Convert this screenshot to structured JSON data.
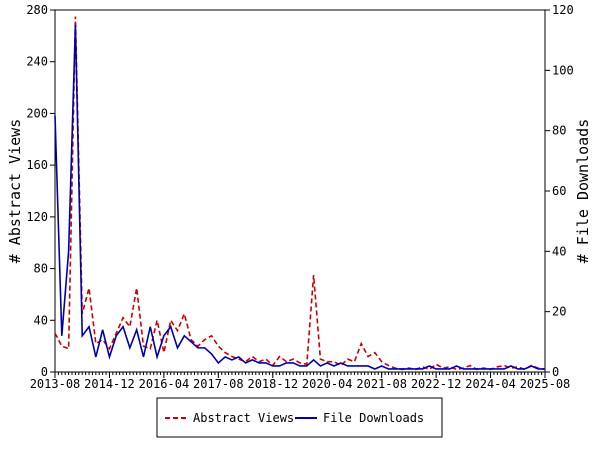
{
  "chart_data": {
    "type": "line",
    "ylabel": "# Abstract Views",
    "y2label": "# File Downloads",
    "x": [
      "2013-08",
      "2013-10",
      "2013-12",
      "2014-02",
      "2014-04",
      "2014-06",
      "2014-08",
      "2014-10",
      "2014-12",
      "2015-02",
      "2015-04",
      "2015-06",
      "2015-08",
      "2015-10",
      "2015-12",
      "2016-02",
      "2016-04",
      "2016-06",
      "2016-08",
      "2016-10",
      "2016-12",
      "2017-02",
      "2017-04",
      "2017-06",
      "2017-08",
      "2017-10",
      "2017-12",
      "2018-02",
      "2018-04",
      "2018-06",
      "2018-08",
      "2018-10",
      "2018-12",
      "2019-02",
      "2019-04",
      "2019-06",
      "2019-08",
      "2019-10",
      "2019-12",
      "2020-02",
      "2020-04",
      "2020-06",
      "2020-08",
      "2020-10",
      "2020-12",
      "2021-02",
      "2021-04",
      "2021-06",
      "2021-08",
      "2021-10",
      "2021-12",
      "2022-02",
      "2022-04",
      "2022-06",
      "2022-08",
      "2022-10",
      "2022-12",
      "2023-02",
      "2023-04",
      "2023-06",
      "2023-08",
      "2023-10",
      "2023-12",
      "2024-02",
      "2024-04",
      "2024-06",
      "2024-08",
      "2024-10",
      "2024-12",
      "2025-02",
      "2025-04",
      "2025-06",
      "2025-08"
    ],
    "series": [
      {
        "name": "Abstract Views",
        "color": "#cc0000",
        "dash": true,
        "values": [
          30,
          20,
          18,
          275,
          45,
          65,
          22,
          25,
          18,
          30,
          42,
          35,
          65,
          20,
          18,
          40,
          15,
          40,
          32,
          45,
          25,
          20,
          25,
          28,
          20,
          15,
          12,
          10,
          8,
          12,
          8,
          10,
          5,
          12,
          8,
          10,
          7,
          6,
          75,
          10,
          8,
          8,
          5,
          10,
          8,
          22,
          12,
          15,
          8,
          5,
          3,
          2,
          3,
          2,
          4,
          2,
          6,
          3,
          4,
          2,
          3,
          5,
          2,
          3,
          2,
          4,
          5,
          3,
          4,
          2,
          5,
          3,
          2
        ]
      },
      {
        "name": "File Downloads",
        "color": "#0000aa",
        "dash": false,
        "axis": "y2",
        "values": [
          85,
          12,
          40,
          115,
          12,
          15,
          5,
          14,
          5,
          12,
          15,
          8,
          14,
          5,
          15,
          5,
          12,
          15,
          8,
          12,
          10,
          8,
          8,
          6,
          3,
          5,
          4,
          5,
          3,
          4,
          3,
          3,
          2,
          2,
          3,
          3,
          2,
          2,
          4,
          2,
          3,
          2,
          3,
          2,
          2,
          2,
          2,
          1,
          2,
          1,
          1,
          1,
          1,
          1,
          1,
          2,
          1,
          1,
          1,
          2,
          1,
          1,
          1,
          1,
          1,
          1,
          1,
          2,
          1,
          1,
          2,
          1,
          1
        ]
      }
    ],
    "xlim": [
      "2013-08",
      "2025-08"
    ],
    "xticks": [
      "2013-08",
      "2014-12",
      "2016-04",
      "2017-08",
      "2018-12",
      "2020-04",
      "2021-08",
      "2022-12",
      "2024-04",
      "2025-08"
    ],
    "ylim": [
      0,
      280
    ],
    "yticks": [
      0,
      40,
      80,
      120,
      160,
      200,
      240,
      280
    ],
    "y2lim": [
      0,
      120
    ],
    "y2ticks": [
      0,
      20,
      40,
      60,
      80,
      100,
      120
    ]
  }
}
